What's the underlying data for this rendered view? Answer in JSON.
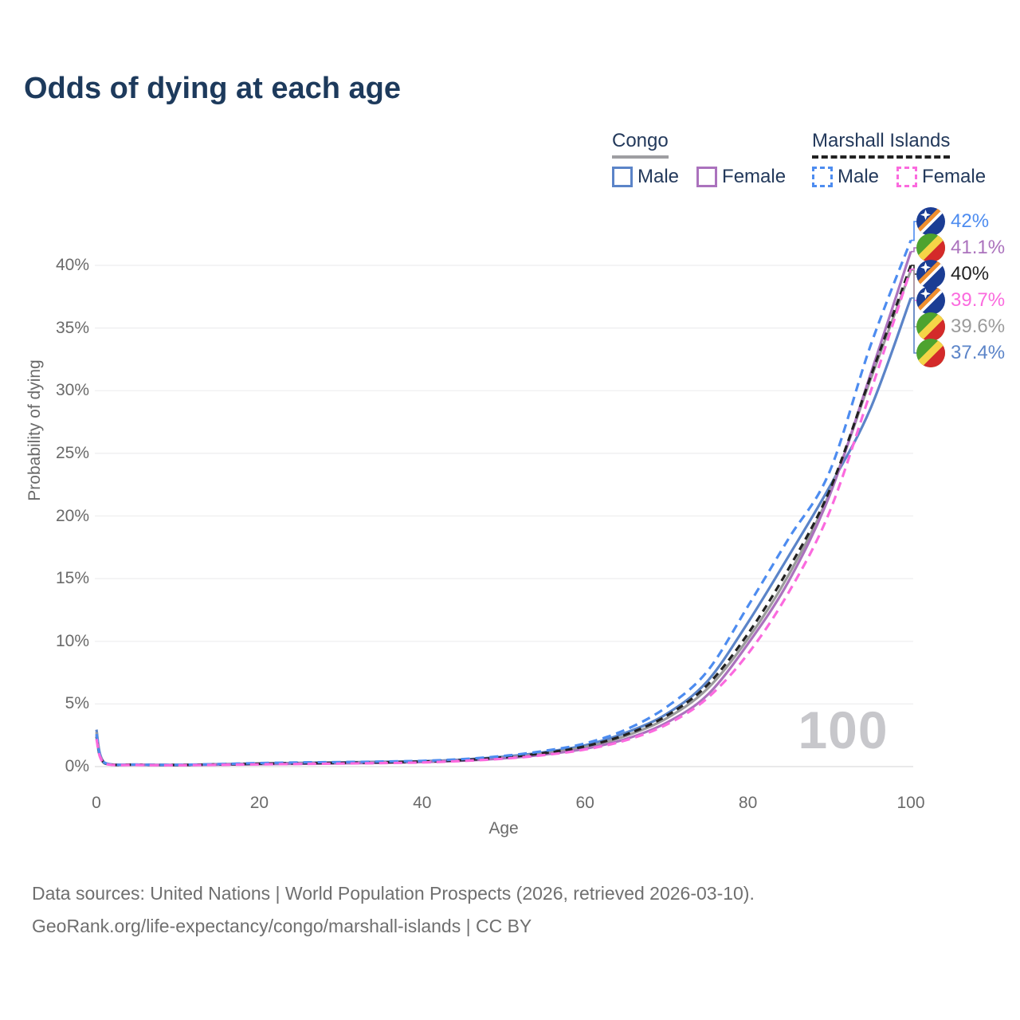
{
  "title": "Odds of dying at each age",
  "watermark": "100",
  "legend": {
    "congo": {
      "label": "Congo",
      "male_label": "Male",
      "female_label": "Female"
    },
    "marshall": {
      "label": "Marshall Islands",
      "male_label": "Male",
      "female_label": "Female"
    }
  },
  "chart_data": {
    "type": "line",
    "title": "Odds of dying at each age",
    "xlabel": "Age",
    "ylabel": "Probability of dying",
    "xlim": [
      0,
      100
    ],
    "ylim_pct": [
      0,
      44
    ],
    "x_ticks": [
      0,
      20,
      40,
      60,
      80,
      100
    ],
    "y_ticks_pct": [
      0,
      5,
      10,
      15,
      20,
      25,
      30,
      35,
      40
    ],
    "grid": "horizontal-only",
    "legend_position": "top-right",
    "ages": [
      0,
      1,
      5,
      10,
      15,
      20,
      25,
      30,
      35,
      40,
      45,
      50,
      55,
      60,
      65,
      70,
      75,
      80,
      85,
      90,
      95,
      100
    ],
    "series": [
      {
        "name": "Congo Male",
        "country": "Congo",
        "sex": "Male",
        "color": "#5b84c8",
        "dash": false,
        "values": [
          2.95,
          0.31,
          0.16,
          0.14,
          0.19,
          0.25,
          0.3,
          0.34,
          0.38,
          0.43,
          0.56,
          0.79,
          1.15,
          1.7,
          2.7,
          4.2,
          6.8,
          11.5,
          16.8,
          22.3,
          28.5,
          37.4
        ]
      },
      {
        "name": "Congo",
        "country": "Congo",
        "sex": "Both",
        "color": "#9b9b9b",
        "dash": false,
        "values": [
          2.75,
          0.29,
          0.15,
          0.13,
          0.17,
          0.22,
          0.26,
          0.3,
          0.34,
          0.39,
          0.51,
          0.72,
          1.05,
          1.55,
          2.45,
          3.85,
          6.2,
          10.2,
          15.3,
          21.8,
          30.8,
          39.6
        ]
      },
      {
        "name": "Congo Female",
        "country": "Congo",
        "sex": "Female",
        "color": "#ab72bd",
        "dash": false,
        "values": [
          2.55,
          0.28,
          0.14,
          0.12,
          0.15,
          0.19,
          0.22,
          0.26,
          0.3,
          0.36,
          0.48,
          0.66,
          0.96,
          1.42,
          2.2,
          3.5,
          5.7,
          9.8,
          14.8,
          21.6,
          31.2,
          41.1
        ]
      },
      {
        "name": "Marshall Islands",
        "country": "Marshall Islands",
        "sex": "Both",
        "color": "#222222",
        "dash": true,
        "values": [
          2.4,
          0.27,
          0.15,
          0.13,
          0.17,
          0.23,
          0.27,
          0.3,
          0.34,
          0.4,
          0.52,
          0.74,
          1.08,
          1.62,
          2.55,
          4.05,
          6.5,
          10.6,
          15.8,
          22.0,
          31.0,
          40.0
        ]
      },
      {
        "name": "Marshall Islands Male",
        "country": "Marshall Islands",
        "sex": "Male",
        "color": "#4d8cf0",
        "dash": true,
        "values": [
          2.6,
          0.3,
          0.16,
          0.14,
          0.2,
          0.28,
          0.33,
          0.36,
          0.4,
          0.46,
          0.6,
          0.85,
          1.25,
          1.85,
          2.95,
          4.75,
          7.6,
          12.8,
          18.2,
          23.5,
          33.5,
          42.0
        ]
      },
      {
        "name": "Marshall Islands Female",
        "country": "Marshall Islands",
        "sex": "Female",
        "color": "#fb6ade",
        "dash": true,
        "values": [
          2.2,
          0.24,
          0.13,
          0.11,
          0.14,
          0.18,
          0.21,
          0.24,
          0.28,
          0.33,
          0.45,
          0.63,
          0.92,
          1.36,
          2.1,
          3.35,
          5.45,
          9.0,
          13.9,
          20.3,
          29.8,
          39.7
        ]
      }
    ]
  },
  "end_labels": [
    {
      "text": "42%",
      "value_pct": 42.0,
      "color": "#4d8cf0",
      "flag": "marshall-islands",
      "series": "Marshall Islands Male"
    },
    {
      "text": "41.1%",
      "value_pct": 41.1,
      "color": "#ab72bd",
      "flag": "congo",
      "series": "Congo Female"
    },
    {
      "text": "40%",
      "value_pct": 40.0,
      "color": "#222222",
      "flag": "marshall-islands",
      "series": "Marshall Islands"
    },
    {
      "text": "39.7%",
      "value_pct": 39.7,
      "color": "#fb6ade",
      "flag": "marshall-islands",
      "series": "Marshall Islands Female"
    },
    {
      "text": "39.6%",
      "value_pct": 39.6,
      "color": "#9b9b9b",
      "flag": "congo",
      "series": "Congo"
    },
    {
      "text": "37.4%",
      "value_pct": 37.4,
      "color": "#5b84c8",
      "flag": "congo",
      "series": "Congo Male"
    }
  ],
  "footer": {
    "line1": "Data sources: United Nations | World Population Prospects (2026, retrieved 2026-03-10).",
    "line2": "GeoRank.org/life-expectancy/congo/marshall-islands | CC BY"
  }
}
